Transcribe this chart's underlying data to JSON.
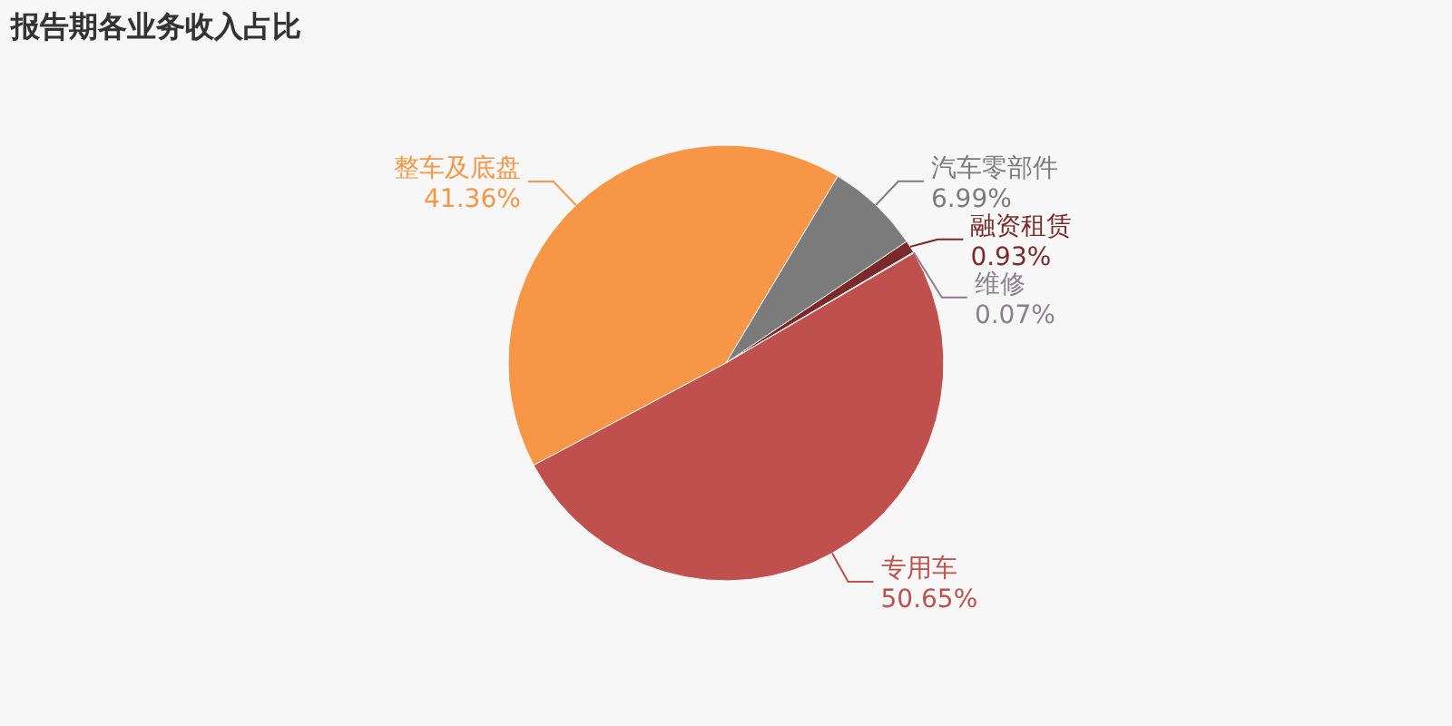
{
  "chart_data": {
    "type": "pie",
    "title": "报告期各业务收入占比",
    "categories": [
      "整车及底盘",
      "汽车零部件",
      "融资租赁",
      "维修",
      "专用车"
    ],
    "values": [
      41.36,
      6.99,
      0.93,
      0.07,
      50.65
    ],
    "colors": [
      "#f79646",
      "#7b7b7b",
      "#7a2a2a",
      "#8c7f8e",
      "#c0504d"
    ],
    "value_labels": [
      "41.36%",
      "6.99%",
      "0.93%",
      "0.07%",
      "50.65%"
    ]
  }
}
